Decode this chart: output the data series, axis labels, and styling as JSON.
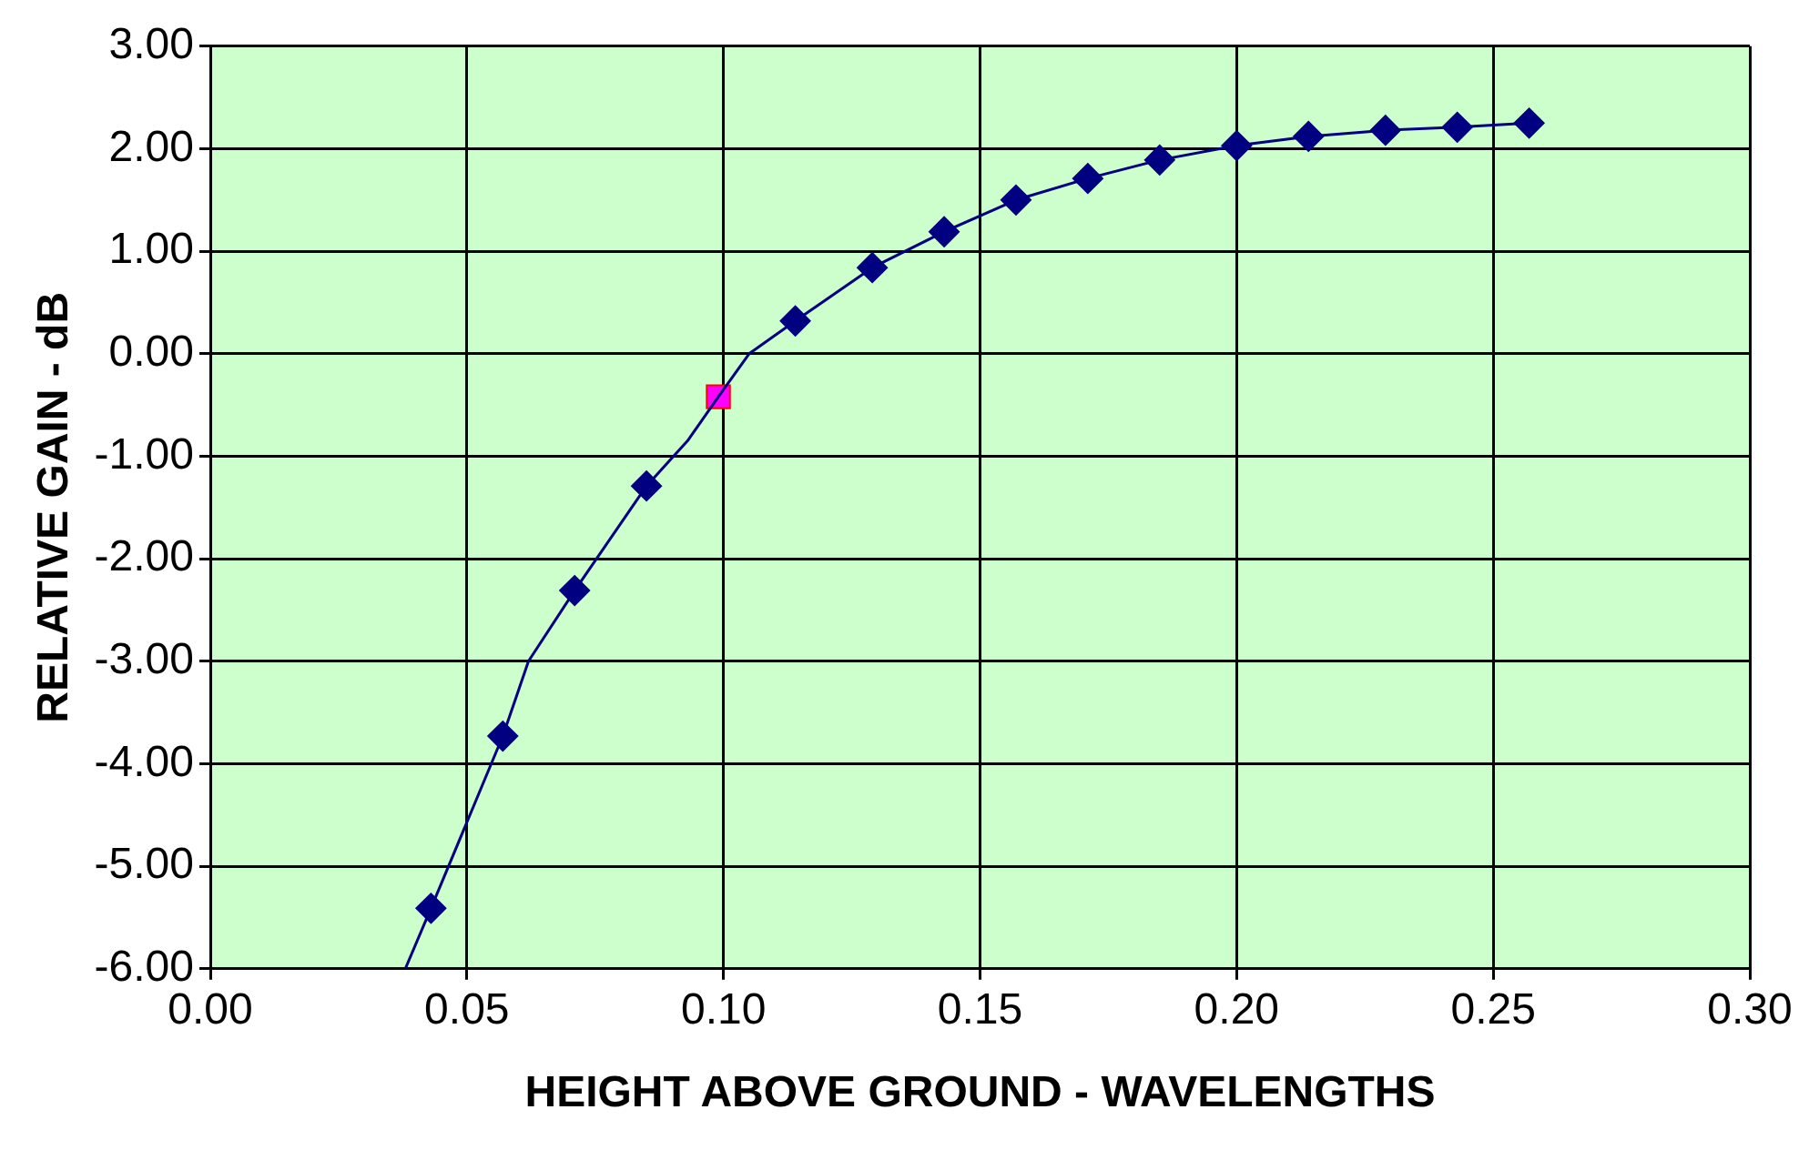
{
  "chart_data": {
    "type": "line",
    "xlabel": "HEIGHT ABOVE GROUND - WAVELENGTHS",
    "ylabel": "RELATIVE GAIN - dB",
    "xlim": [
      0,
      0.3
    ],
    "xticks": [
      {
        "value": 0,
        "label": "0.00"
      },
      {
        "value": 0.05,
        "label": "0.05"
      },
      {
        "value": 0.1,
        "label": "0.10"
      },
      {
        "value": 0.15,
        "label": "0.15"
      },
      {
        "value": 0.2,
        "label": "0.20"
      },
      {
        "value": 0.25,
        "label": "0.25"
      },
      {
        "value": 0.3,
        "label": "0.30"
      }
    ],
    "ylim": [
      -6,
      3
    ],
    "yticks": [
      {
        "value": -6,
        "label": "-6.00"
      },
      {
        "value": -5,
        "label": "-5.00"
      },
      {
        "value": -4,
        "label": "-4.00"
      },
      {
        "value": -3,
        "label": "-3.00"
      },
      {
        "value": -2,
        "label": "-2.00"
      },
      {
        "value": -1,
        "label": "-1.00"
      },
      {
        "value": 0,
        "label": "0.00"
      },
      {
        "value": 1,
        "label": "1.00"
      },
      {
        "value": 2,
        "label": "2.00"
      },
      {
        "value": 3,
        "label": "3.00"
      }
    ],
    "grid": true,
    "legend": false,
    "series": [
      {
        "type": "line",
        "marker": "none",
        "color": "#000080",
        "x": [
          0.038,
          0.043,
          0.057,
          0.062,
          0.071,
          0.078,
          0.085,
          0.093,
          0.099,
          0.105,
          0.114,
          0.129,
          0.143,
          0.157,
          0.171,
          0.185,
          0.2,
          0.214,
          0.229,
          0.243,
          0.257
        ],
        "values": [
          -6.0,
          -5.41,
          -3.73,
          -3.0,
          -2.31,
          -1.8,
          -1.29,
          -0.85,
          -0.42,
          0.0,
          0.32,
          0.84,
          1.19,
          1.5,
          1.71,
          1.89,
          2.03,
          2.12,
          2.18,
          2.21,
          2.25
        ]
      },
      {
        "type": "scatter",
        "marker": "diamond",
        "color": "#000080",
        "x": [
          0.043,
          0.057,
          0.071,
          0.085,
          0.114,
          0.129,
          0.143,
          0.157,
          0.171,
          0.185,
          0.2,
          0.214,
          0.229,
          0.243,
          0.257
        ],
        "values": [
          -5.41,
          -3.73,
          -2.31,
          -1.29,
          0.32,
          0.84,
          1.19,
          1.5,
          1.71,
          1.89,
          2.03,
          2.12,
          2.18,
          2.21,
          2.25
        ]
      },
      {
        "type": "scatter",
        "marker": "square",
        "color": "#ff00ff",
        "x": [
          0.099
        ],
        "values": [
          -0.42
        ]
      }
    ]
  }
}
